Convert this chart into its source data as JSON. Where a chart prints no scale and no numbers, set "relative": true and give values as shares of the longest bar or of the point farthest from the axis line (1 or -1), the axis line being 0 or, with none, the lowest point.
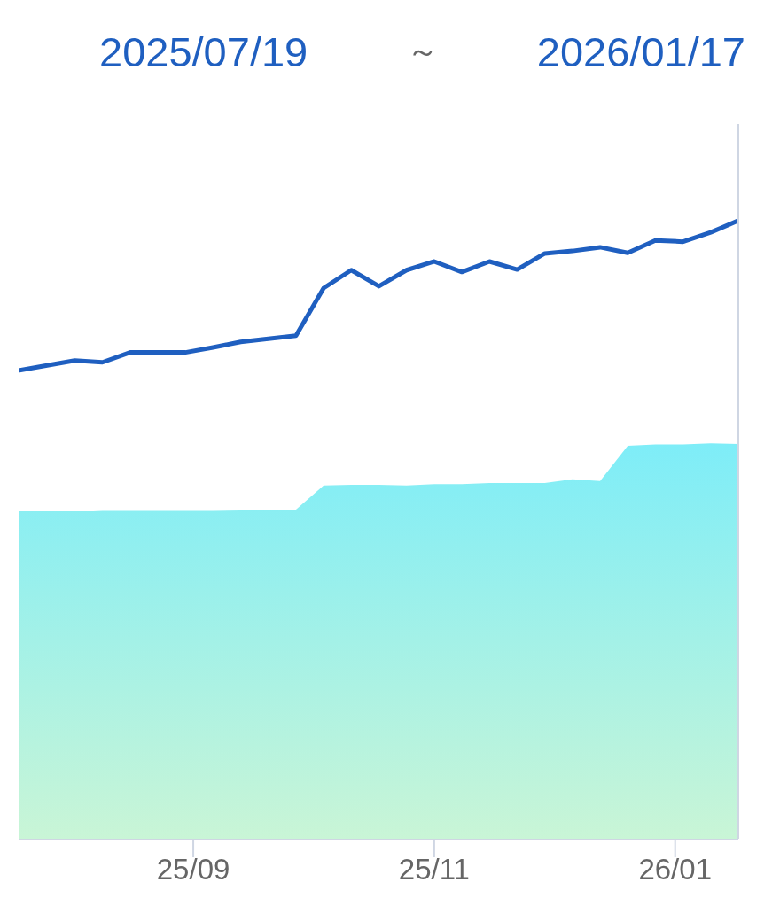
{
  "chart_data": {
    "type": "line",
    "title": "2025/07/19 ～ 2026/01/17",
    "relative": true,
    "marker": "none",
    "x": [
      "2025-07-19",
      "2025-07-26",
      "2025-08-02",
      "2025-08-09",
      "2025-08-16",
      "2025-08-23",
      "2025-08-30",
      "2025-09-06",
      "2025-09-13",
      "2025-09-20",
      "2025-09-27",
      "2025-10-04",
      "2025-10-11",
      "2025-10-18",
      "2025-10-25",
      "2025-11-01",
      "2025-11-08",
      "2025-11-15",
      "2025-11-22",
      "2025-11-29",
      "2025-12-06",
      "2025-12-13",
      "2025-12-20",
      "2025-12-27",
      "2026-01-03",
      "2026-01-10",
      "2026-01-17"
    ],
    "xlim": [
      "2025-07-19",
      "2026-01-17"
    ],
    "xticks": [
      {
        "value": "2025-09-01",
        "label": "25/09"
      },
      {
        "value": "2025-11-01",
        "label": "25/11"
      },
      {
        "value": "2026-01-01",
        "label": "26/01"
      }
    ],
    "series": [
      {
        "type": "area",
        "color": "#7eedf8",
        "values": [
          0.53,
          0.53,
          0.53,
          0.532,
          0.532,
          0.532,
          0.532,
          0.532,
          0.533,
          0.533,
          0.533,
          0.572,
          0.573,
          0.573,
          0.572,
          0.574,
          0.574,
          0.576,
          0.576,
          0.576,
          0.582,
          0.579,
          0.636,
          0.638,
          0.638,
          0.64,
          0.639
        ]
      },
      {
        "color": "#1f5fc0",
        "values": [
          0.758,
          0.766,
          0.774,
          0.771,
          0.787,
          0.787,
          0.787,
          0.795,
          0.804,
          0.809,
          0.814,
          0.891,
          0.92,
          0.894,
          0.92,
          0.934,
          0.917,
          0.934,
          0.921,
          0.947,
          0.951,
          0.957,
          0.948,
          0.968,
          0.966,
          0.981,
          1.0
        ]
      }
    ]
  }
}
